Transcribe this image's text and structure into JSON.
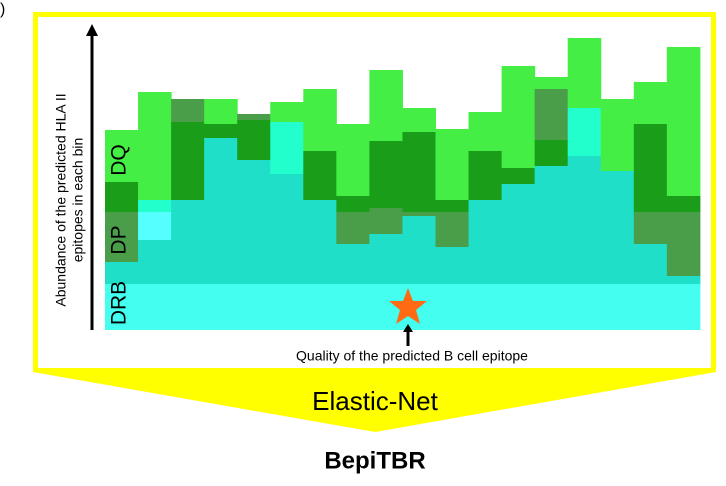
{
  "panel_label": ")",
  "chart": {
    "y_axis_label": [
      "Abundance of the predicted HLA II",
      "epitopes in each bin"
    ],
    "layer_labels": [
      "DQ",
      "DP",
      "DRB"
    ],
    "x_axis_label": "Quality of the predicted B cell epitope"
  },
  "model": "Elastic-Net",
  "output": "BepiTBR"
}
